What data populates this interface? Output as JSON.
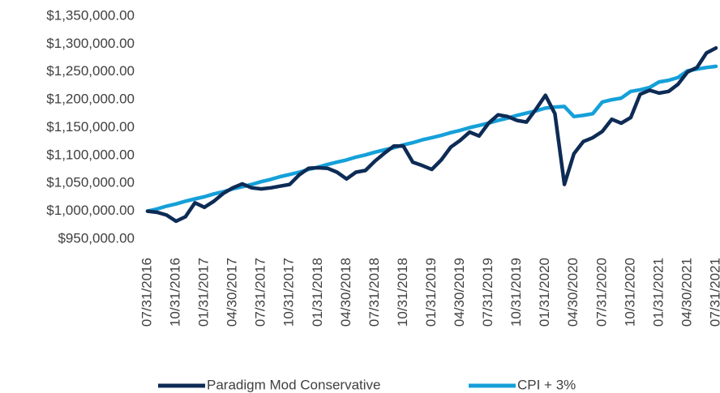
{
  "chart_data": {
    "type": "line",
    "categories": [
      "07/31/2016",
      null,
      null,
      "10/31/2016",
      null,
      null,
      "01/31/2017",
      null,
      null,
      "04/30/2017",
      null,
      null,
      "07/31/2017",
      null,
      null,
      "10/31/2017",
      null,
      null,
      "01/31/2018",
      null,
      null,
      "04/30/2018",
      null,
      null,
      "07/31/2018",
      null,
      null,
      "10/31/2018",
      null,
      null,
      "01/31/2019",
      null,
      null,
      "04/30/2019",
      null,
      null,
      "07/31/2019",
      null,
      null,
      "10/31/2019",
      null,
      null,
      "01/31/2020",
      null,
      null,
      "04/30/2020",
      null,
      null,
      "07/31/2020",
      null,
      null,
      "10/31/2020",
      null,
      null,
      "01/31/2021",
      null,
      null,
      "04/30/2021",
      null,
      null,
      "07/31/2021"
    ],
    "series": [
      {
        "name": "Paradigm Mod Conservative",
        "color": "#0d2b55",
        "values": [
          1000000,
          998000,
          993000,
          982000,
          990000,
          1015000,
          1007000,
          1018000,
          1032000,
          1042000,
          1049000,
          1042000,
          1040000,
          1042000,
          1045000,
          1048000,
          1065000,
          1077000,
          1078000,
          1077000,
          1070000,
          1058000,
          1070000,
          1073000,
          1090000,
          1104000,
          1117000,
          1117000,
          1088000,
          1082000,
          1075000,
          1092000,
          1115000,
          1127000,
          1142000,
          1135000,
          1158000,
          1173000,
          1170000,
          1163000,
          1160000,
          1183000,
          1208000,
          1175000,
          1048000,
          1103000,
          1125000,
          1132000,
          1143000,
          1165000,
          1158000,
          1168000,
          1210000,
          1217000,
          1212000,
          1215000,
          1228000,
          1250000,
          1258000,
          1284000,
          1293000
        ]
      },
      {
        "name": "CPI + 3%",
        "color": "#15a0d9",
        "values": [
          1000000,
          1004000,
          1009000,
          1013000,
          1018000,
          1022000,
          1026000,
          1031000,
          1035000,
          1040000,
          1044000,
          1048000,
          1053000,
          1057000,
          1062000,
          1066000,
          1070000,
          1075000,
          1079000,
          1084000,
          1088000,
          1092000,
          1097000,
          1101000,
          1106000,
          1110000,
          1114000,
          1119000,
          1123000,
          1128000,
          1132000,
          1136000,
          1141000,
          1145000,
          1150000,
          1154000,
          1158000,
          1163000,
          1167000,
          1172000,
          1176000,
          1180000,
          1185000,
          1187000,
          1188000,
          1170000,
          1172000,
          1175000,
          1196000,
          1200000,
          1203000,
          1215000,
          1218000,
          1222000,
          1232000,
          1235000,
          1240000,
          1252000,
          1255000,
          1258000,
          1260000
        ]
      }
    ],
    "ylim": [
      950000,
      1350000
    ],
    "yticks": [
      {
        "value": 950000,
        "label": "$950,000.00"
      },
      {
        "value": 1000000,
        "label": "$1,000,000.00"
      },
      {
        "value": 1050000,
        "label": "$1,050,000.00"
      },
      {
        "value": 1100000,
        "label": "$1,100,000.00"
      },
      {
        "value": 1150000,
        "label": "$1,150,000.00"
      },
      {
        "value": 1200000,
        "label": "$1,200,000.00"
      },
      {
        "value": 1250000,
        "label": "$1,250,000.00"
      },
      {
        "value": 1300000,
        "label": "$1,300,000.00"
      },
      {
        "value": 1350000,
        "label": "$1,350,000.00"
      }
    ],
    "legend": "bottom"
  }
}
